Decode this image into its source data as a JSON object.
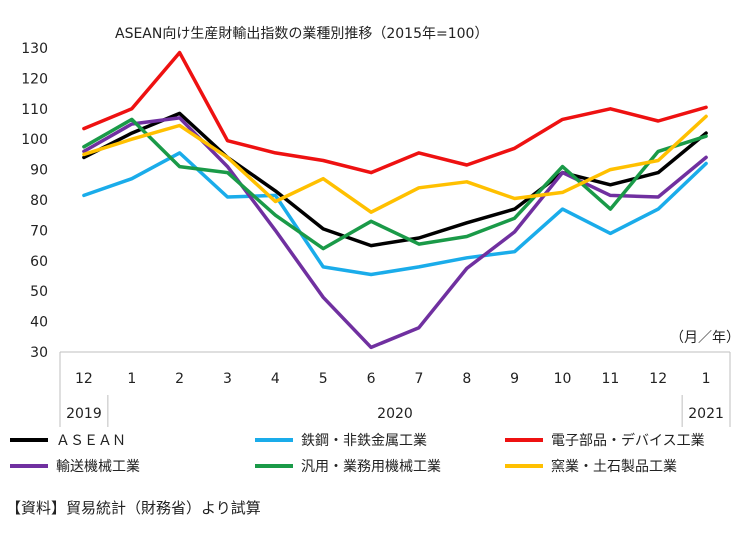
{
  "chart_data": {
    "type": "line",
    "title": "ASEAN向け生産財輸出指数の業種別推移（2015年=100）",
    "unit_label": "（月／年）",
    "x": [
      "12",
      "1",
      "2",
      "3",
      "4",
      "5",
      "6",
      "7",
      "8",
      "9",
      "10",
      "11",
      "12",
      "1"
    ],
    "year_labels": [
      {
        "label": "2019",
        "from_index": 0,
        "to_index": 0
      },
      {
        "label": "2020",
        "from_index": 1,
        "to_index": 12
      },
      {
        "label": "2021",
        "from_index": 13,
        "to_index": 13
      }
    ],
    "ylim": [
      30,
      130
    ],
    "yticks": [
      30,
      40,
      50,
      60,
      70,
      80,
      90,
      100,
      110,
      120,
      130
    ],
    "grid": false,
    "legend_position": "bottom",
    "series": [
      {
        "name": "ＡＳＥＡＮ",
        "color": "#000000",
        "values": [
          94,
          102,
          108.5,
          94,
          83,
          70.5,
          65,
          67.5,
          72.5,
          77,
          89,
          85,
          89,
          102
        ]
      },
      {
        "name": "鉄鋼・非鉄金属工業",
        "color": "#1aacea",
        "values": [
          81.5,
          87,
          95.5,
          81,
          81.5,
          58,
          55.5,
          58,
          61,
          63,
          77,
          69,
          77,
          92
        ]
      },
      {
        "name": "電子部品・デバイス工業",
        "color": "#ee1111",
        "values": [
          103.5,
          110,
          128.5,
          99.5,
          95.5,
          93,
          89,
          95.5,
          91.5,
          97,
          106.5,
          110,
          106,
          110.5
        ]
      },
      {
        "name": "輸送機械工業",
        "color": "#7030a0",
        "values": [
          96,
          105,
          107,
          91,
          70,
          48,
          31.5,
          38,
          57.5,
          69.5,
          89,
          81.5,
          81,
          94
        ]
      },
      {
        "name": "汎用・業務用機械工業",
        "color": "#1a9a48",
        "values": [
          97.5,
          106.5,
          91,
          89,
          75,
          64,
          73,
          65.5,
          68,
          74,
          91,
          77,
          96,
          101
        ]
      },
      {
        "name": "窯業・土石製品工業",
        "color": "#ffc000",
        "values": [
          95,
          100,
          104.5,
          94,
          79.5,
          87,
          76,
          84,
          86,
          80.5,
          82.5,
          90,
          93,
          107.5
        ]
      }
    ]
  },
  "source_note": "【資料】貿易統計（財務省）より試算"
}
